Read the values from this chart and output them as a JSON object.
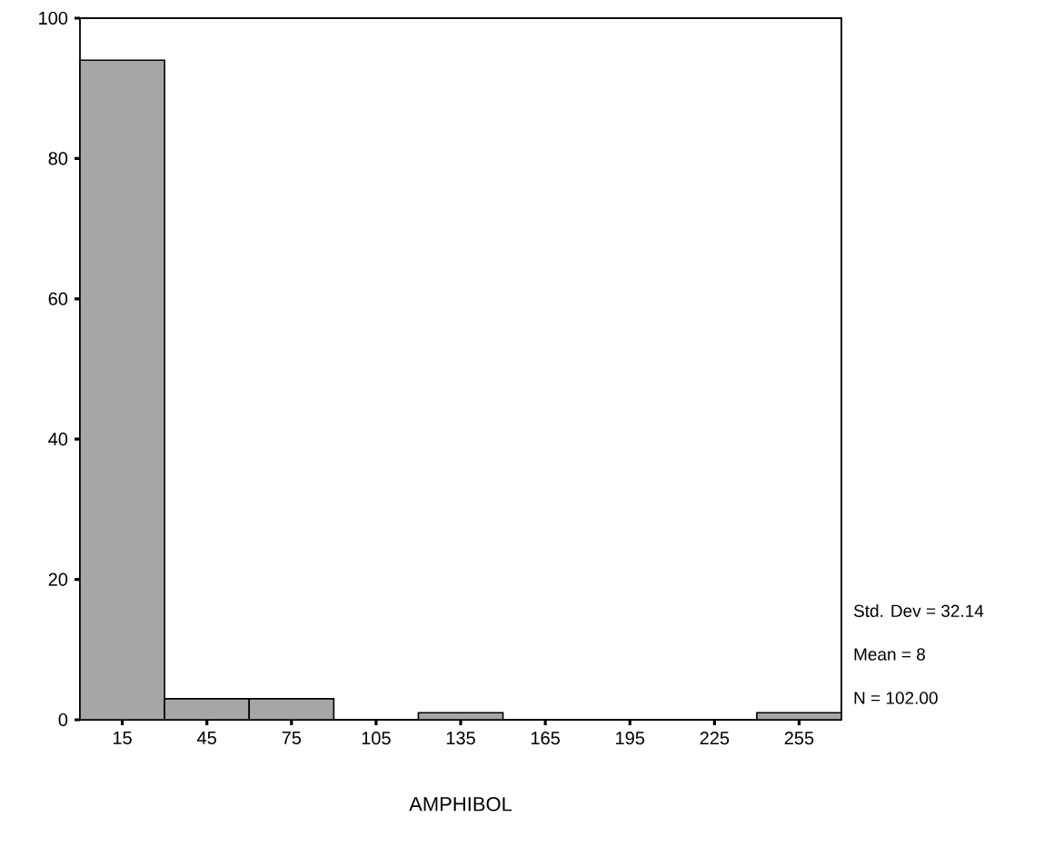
{
  "chart_data": {
    "type": "histogram",
    "xlabel": "AMPHIBOL",
    "bins": [
      0,
      30,
      60,
      90,
      120,
      150,
      180,
      210,
      240,
      270
    ],
    "values": [
      94,
      3,
      3,
      0,
      1,
      0,
      0,
      0,
      1
    ],
    "color": "#a6a6a6",
    "xlim": [
      0,
      270
    ],
    "ylim": [
      0,
      100
    ],
    "xticks": [
      15,
      45,
      75,
      105,
      135,
      165,
      195,
      225,
      255
    ],
    "yticks": [
      0,
      20,
      40,
      60,
      80,
      100
    ],
    "annotations": [
      "Std. Dev = 32.14",
      "Mean = 8",
      "N = 102.00"
    ]
  }
}
